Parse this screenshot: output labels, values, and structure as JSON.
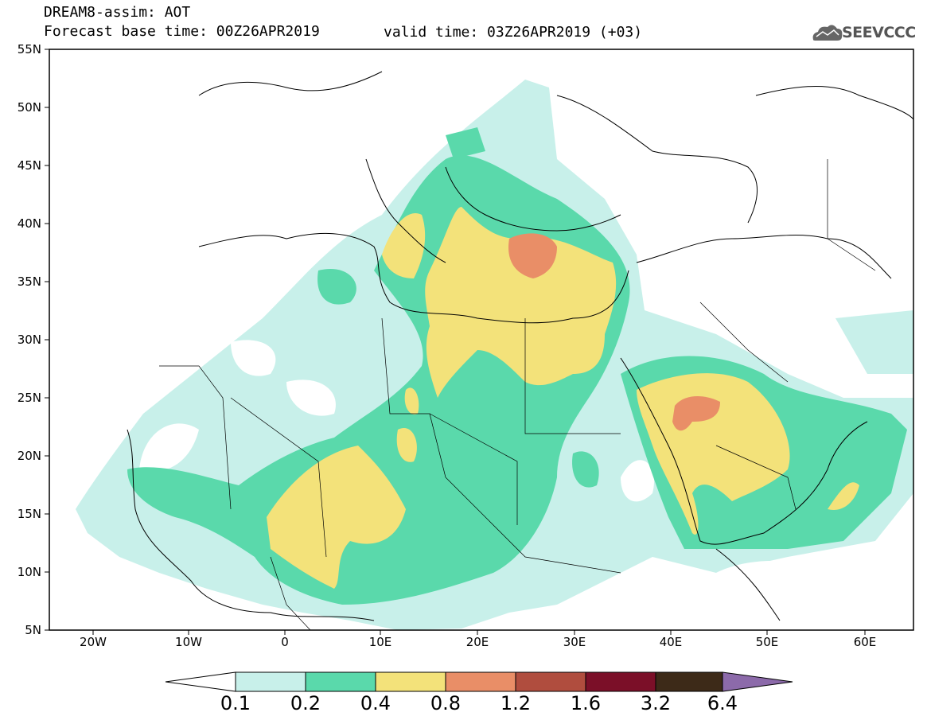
{
  "header": {
    "line1": "DREAM8-assim: AOT",
    "line2": "Forecast base time: 00Z26APR2019",
    "valid": "valid time: 03Z26APR2019 (+03)",
    "logo": "SEEVCCC"
  },
  "axes": {
    "lat_labels": [
      "55N",
      "50N",
      "45N",
      "40N",
      "35N",
      "30N",
      "25N",
      "20N",
      "15N",
      "10N",
      "5N"
    ],
    "lon_labels": [
      "20W",
      "10W",
      "0",
      "10E",
      "20E",
      "30E",
      "40E",
      "50E",
      "60E"
    ]
  },
  "legend": {
    "labels": [
      "0.1",
      "0.2",
      "0.4",
      "0.8",
      "1.2",
      "1.6",
      "3.2",
      "6.4"
    ],
    "colors": [
      "#c8f0ea",
      "#5ad9ab",
      "#f3e27a",
      "#e98e67",
      "#b04d3e",
      "#7b0f28",
      "#3d2a18",
      "#8c6aaa"
    ]
  },
  "colors": {
    "c01": "#c8f0ea",
    "c02": "#5ad9ab",
    "c04": "#f3e27a",
    "c08": "#e98e67"
  }
}
